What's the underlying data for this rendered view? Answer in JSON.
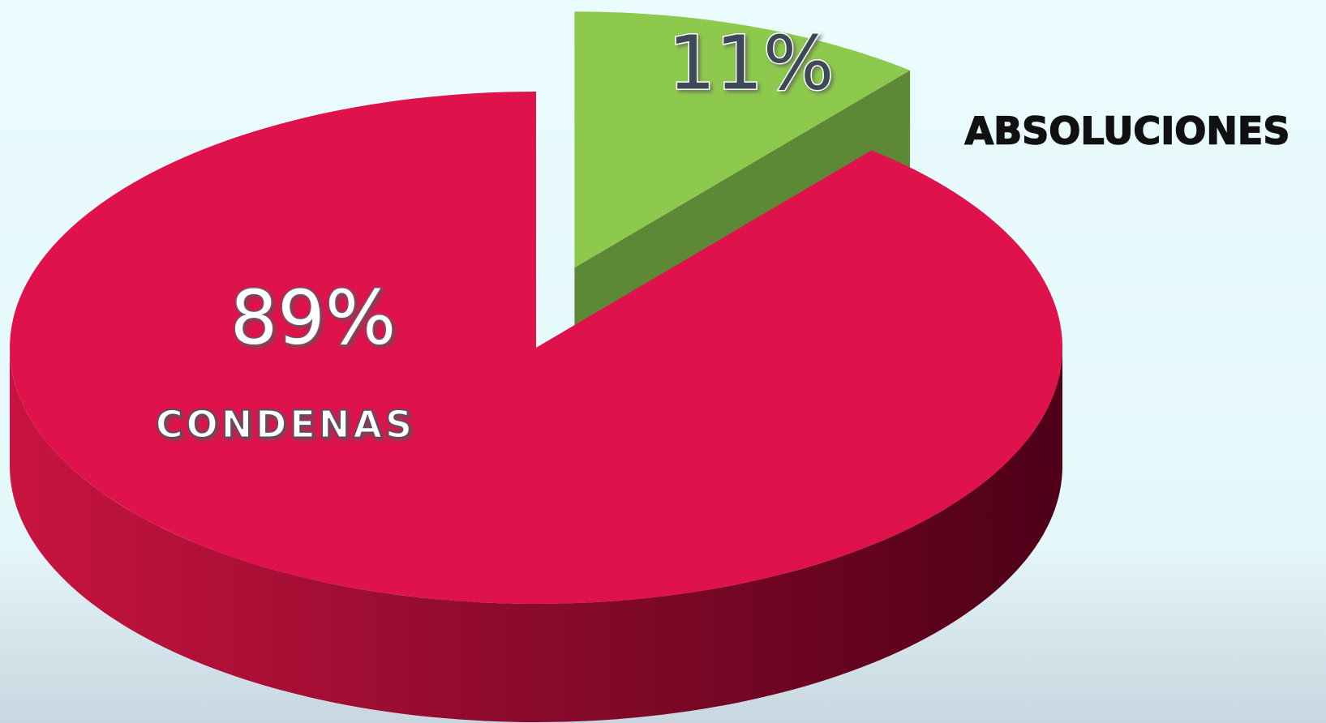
{
  "chart_data": {
    "type": "pie",
    "categories": [
      "CONDENAS",
      "ABSOLUCIONES"
    ],
    "values": [
      89,
      11
    ],
    "value_labels": [
      "89%",
      "11%"
    ],
    "colors": [
      "#e0124c",
      "#8dc94d"
    ]
  }
}
